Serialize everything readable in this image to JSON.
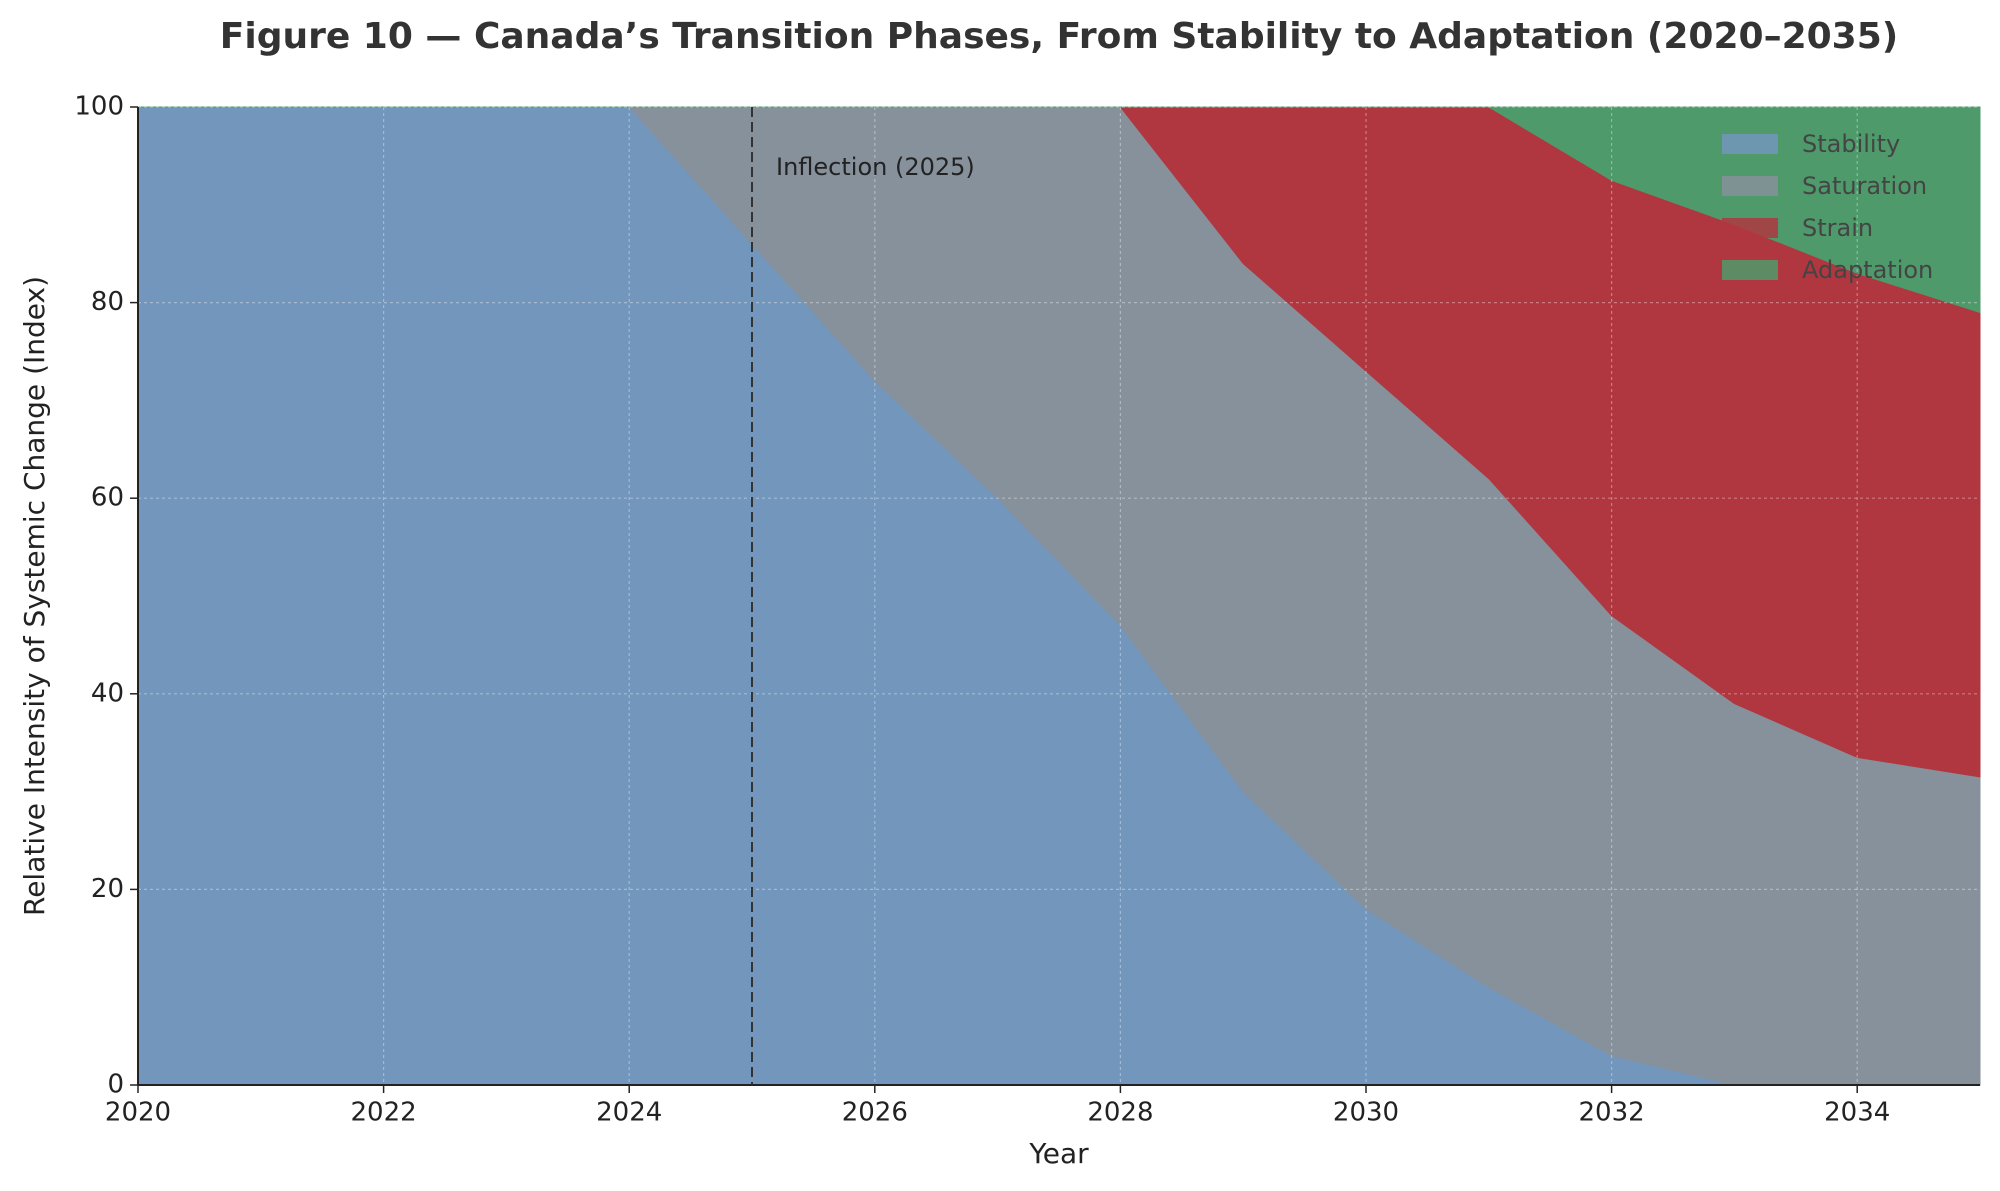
{
  "chart_data": {
    "type": "stacked_area",
    "title": "Figure 10 — Canada’s Transition Phases, From Stability to Adaptation (2020–2035)",
    "x_label": "Year",
    "y_label": "Relative Intensity of Systemic Change (Index)",
    "x": [
      2020,
      2021,
      2022,
      2023,
      2024,
      2025,
      2026,
      2027,
      2028,
      2029,
      2030,
      2031,
      2032,
      2033,
      2034,
      2035
    ],
    "series": [
      {
        "name": "Stability",
        "color": "#7396bc",
        "values": [
          100,
          100,
          100,
          100,
          100,
          86,
          72,
          60,
          47,
          30,
          18,
          10,
          3,
          0,
          0,
          0
        ]
      },
      {
        "name": "Saturation",
        "color": "#87919b",
        "values": [
          0,
          0,
          0,
          0,
          0,
          14,
          28,
          40,
          53,
          54,
          55,
          52,
          45,
          39,
          33.5,
          31.5
        ]
      },
      {
        "name": "Strain",
        "color": "#b03740",
        "values": [
          0,
          0,
          0,
          0,
          0,
          0,
          0,
          0,
          0,
          16,
          27,
          38,
          44.5,
          49,
          49.5,
          47.5
        ]
      },
      {
        "name": "Adaptation",
        "color": "#4e9a6b",
        "values": [
          0,
          0,
          0,
          0,
          0,
          0,
          0,
          0,
          0,
          0,
          0,
          0,
          7.5,
          12,
          17,
          21
        ]
      }
    ],
    "xlim": [
      2020,
      2035
    ],
    "xticks": [
      2020,
      2022,
      2024,
      2026,
      2028,
      2030,
      2032,
      2034
    ],
    "ylim": [
      0,
      100
    ],
    "yticks": [
      0,
      20,
      40,
      60,
      80,
      100
    ],
    "grid": true,
    "legend": "upper right",
    "annotation": {
      "text": "Inflection (2025)",
      "x": 2025
    }
  }
}
